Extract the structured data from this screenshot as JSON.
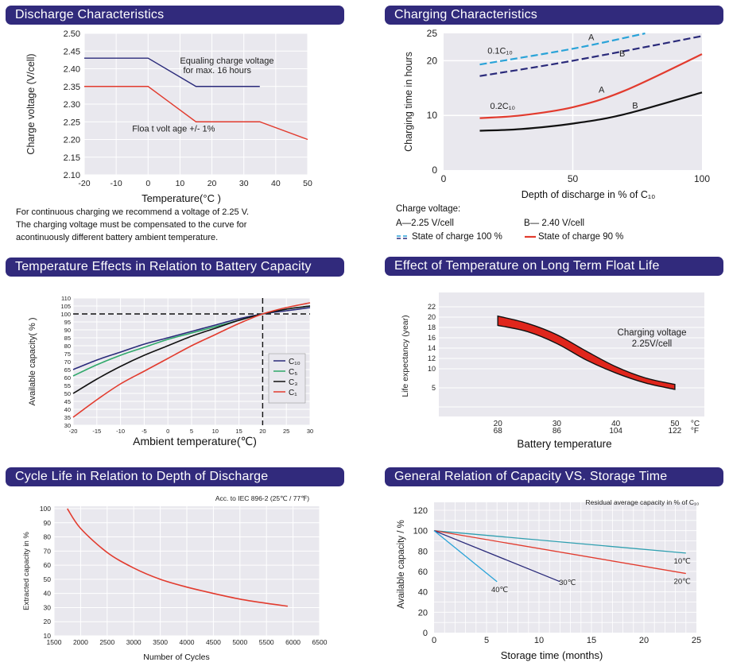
{
  "colors": {
    "title_bg": "#312a7c",
    "plot_bg": "#e9e8ee",
    "grid": "#ffffff",
    "navy": "#2a2a7a",
    "red": "#e23b2e",
    "blue": "#2aa3d8",
    "green": "#2fa86a",
    "teal": "#2f9fb0",
    "black": "#111111"
  },
  "panels": {
    "discharge": {
      "title": "Discharge Characteristics"
    },
    "charging": {
      "title": "Charging Characteristics"
    },
    "temperature": {
      "title": "Temperature Effects in Relation to Battery Capacity"
    },
    "floatlife": {
      "title": "Effect of Temperature on Long Term Float Life"
    },
    "cycle": {
      "title": "Cycle Life in Relation to Depth of Discharge"
    },
    "storage": {
      "title": "General Relation  of Capacity  VS. Storage Time"
    }
  },
  "discharge_note": {
    "line1": "For continuous charging  we recommend a  voltage of 2.25 V.",
    "line2": "The charging voltage  must be compensated  to the curve for",
    "line3": "acontinuously different battery ambient temperature."
  },
  "charging_legend": {
    "heading": "Charge voltage:",
    "a": "A—2.25 V/cell",
    "b": "B— 2.40 V/cell",
    "soc100": "State of charge 100 %",
    "soc90": "State of charge 90 %"
  },
  "chart_data": [
    {
      "id": "discharge",
      "type": "line",
      "title": "Discharge Characteristics",
      "xlabel": "Temperature(°C )",
      "ylabel": "Charge voltage (V/cell)",
      "xlim": [
        -20,
        50
      ],
      "ylim": [
        2.1,
        2.5
      ],
      "xticks": [
        -20,
        -10,
        0,
        10,
        20,
        30,
        40,
        50
      ],
      "yticks": [
        2.1,
        2.15,
        2.2,
        2.25,
        2.3,
        2.35,
        2.4,
        2.45,
        2.5
      ],
      "xtick_labels": [
        "-20",
        "-10",
        "0",
        "10",
        "20",
        "30",
        "40",
        "50"
      ],
      "ytick_labels": [
        "2.10",
        "2.15",
        "2.20",
        "2.25",
        "2.30",
        "2.35",
        "2.40",
        "2.45",
        "2.50"
      ],
      "series": [
        {
          "name": "Equaling charge voltage",
          "color": "navy",
          "x": [
            -20,
            0,
            15,
            35
          ],
          "y": [
            2.43,
            2.43,
            2.35,
            2.35
          ]
        },
        {
          "name": "Float voltage",
          "color": "red",
          "x": [
            -20,
            0,
            15,
            35,
            50
          ],
          "y": [
            2.35,
            2.35,
            2.25,
            2.25,
            2.2
          ]
        }
      ],
      "annotations": [
        {
          "text": "Equaling charge voltage",
          "x": 10,
          "y": 2.415
        },
        {
          "text": "for max. 16 hours",
          "x": 11,
          "y": 2.388
        },
        {
          "text": "Floa t volt age +/- 1%",
          "x": -5,
          "y": 2.223
        }
      ]
    },
    {
      "id": "charging",
      "type": "line",
      "title": "Charging Characteristics",
      "xlabel": "Depth of discharge in % of C₁₀",
      "ylabel": "Charging time in hours",
      "xlim": [
        0,
        100
      ],
      "ylim": [
        0,
        25
      ],
      "xticks": [
        0,
        50,
        100
      ],
      "yticks": [
        0,
        10,
        20,
        25
      ],
      "xtick_labels": [
        "0",
        "50",
        "100"
      ],
      "ytick_labels": [
        "0",
        "10",
        "20",
        "25"
      ],
      "series": [
        {
          "name": "0.1C10 A (100%)",
          "color": "blue",
          "dash": true,
          "x": [
            14,
            50,
            78
          ],
          "y": [
            19.3,
            22.2,
            25
          ]
        },
        {
          "name": "0.1C10 B (100%)",
          "color": "navy",
          "dash": true,
          "x": [
            14,
            50,
            100
          ],
          "y": [
            17.2,
            20.0,
            24.5
          ]
        },
        {
          "name": "0.2C10 A (90%)",
          "color": "red",
          "x": [
            14,
            30,
            50,
            70,
            100
          ],
          "y": [
            9.5,
            10.0,
            11.5,
            14.5,
            21.2
          ]
        },
        {
          "name": "0.2C10 B (90%)",
          "color": "black",
          "x": [
            14,
            30,
            50,
            70,
            100
          ],
          "y": [
            7.2,
            7.5,
            8.5,
            10.2,
            14.2
          ]
        }
      ],
      "annotations": [
        {
          "text": "A",
          "x": 56,
          "y": 23.8
        },
        {
          "text": "B",
          "x": 68,
          "y": 20.8
        },
        {
          "text": "A",
          "x": 60,
          "y": 14.2
        },
        {
          "text": "B",
          "x": 73,
          "y": 11.3
        },
        {
          "text": "0.1C₁₀",
          "x": 17,
          "y": 21.3
        },
        {
          "text": "0.2C₁₀",
          "x": 18,
          "y": 11.2
        }
      ]
    },
    {
      "id": "temperature",
      "type": "line",
      "title": "Temperature Effects in Relation to Battery Capacity",
      "xlabel": "Ambient temperature(℃)",
      "ylabel": "Available capacity( % )",
      "xlim": [
        -20,
        30
      ],
      "ylim": [
        30,
        110
      ],
      "xticks": [
        -20,
        -15,
        -10,
        -5,
        0,
        5,
        10,
        15,
        20,
        25,
        30
      ],
      "yticks": [
        30,
        35,
        40,
        45,
        50,
        55,
        60,
        65,
        70,
        75,
        80,
        85,
        90,
        95,
        100,
        105,
        110
      ],
      "xtick_labels": [
        "-20",
        "-15",
        "-10",
        "-5",
        "0",
        "5",
        "10",
        "15",
        "20",
        "25",
        "30"
      ],
      "ytick_labels": [
        "30",
        "35",
        "40",
        "45",
        "50",
        "55",
        "60",
        "65",
        "70",
        "75",
        "80",
        "85",
        "90",
        "95",
        "100",
        "105",
        "110"
      ],
      "reference": {
        "x": 20,
        "y": 100
      },
      "series": [
        {
          "name": "C₁₀",
          "color": "navy",
          "x": [
            -20,
            -15,
            -10,
            -5,
            0,
            5,
            10,
            15,
            20,
            25,
            30
          ],
          "y": [
            65,
            71,
            76,
            81,
            85,
            89,
            93,
            97,
            100,
            102,
            104
          ]
        },
        {
          "name": "C₅",
          "color": "green",
          "x": [
            -20,
            -15,
            -10,
            -5,
            0,
            5,
            10,
            15,
            20,
            25,
            30
          ],
          "y": [
            61,
            68,
            74,
            79,
            84,
            88,
            92,
            96,
            100,
            103,
            105
          ]
        },
        {
          "name": "C₃",
          "color": "black",
          "x": [
            -20,
            -15,
            -10,
            -5,
            0,
            5,
            10,
            15,
            20,
            25,
            30
          ],
          "y": [
            50,
            59,
            67,
            74,
            80,
            86,
            91,
            96,
            100,
            103,
            105
          ]
        },
        {
          "name": "C₁",
          "color": "red",
          "x": [
            -20,
            -15,
            -10,
            -5,
            0,
            5,
            10,
            15,
            20,
            25,
            30
          ],
          "y": [
            35,
            46,
            56,
            64,
            72,
            80,
            87,
            94,
            100,
            104,
            107
          ]
        }
      ]
    },
    {
      "id": "floatlife",
      "type": "area",
      "title": "Effect of Temperature on Long Term Float Life",
      "xlabel": "Battery temperature",
      "ylabel": "Life expectancy (year)",
      "xlim": [
        10,
        55
      ],
      "yticks": [
        5,
        10,
        12,
        14,
        16,
        18,
        20,
        22
      ],
      "ytick_labels": [
        "5",
        "10",
        "12",
        "14",
        "16",
        "18",
        "20",
        "22"
      ],
      "xticks": [
        20,
        30,
        40,
        50
      ],
      "xtick_labels_c": [
        "20",
        "30",
        "40",
        "50"
      ],
      "xtick_labels_f": [
        "68",
        "86",
        "104",
        "122"
      ],
      "unit_c": "°C",
      "unit_f": "°F",
      "band_x": [
        20,
        25,
        30,
        35,
        40,
        45,
        50
      ],
      "band_upper": [
        20.2,
        18.8,
        16.6,
        13.4,
        10.4,
        7.6,
        5.9
      ],
      "band_lower": [
        18.4,
        17.2,
        14.9,
        11.7,
        8.9,
        6.3,
        4.6
      ],
      "annotations": [
        {
          "text": "Charging voltage"
        },
        {
          "text": "2.25V/cell"
        }
      ]
    },
    {
      "id": "cycle",
      "type": "line",
      "title": "Cycle Life in Relation to Depth of Discharge",
      "subtitle": "Acc. to IEC 896-2 (25℃ / 77℉)",
      "xlabel": "Number of Cycles",
      "ylabel": "Extracted capacity in %",
      "xlim": [
        1500,
        6500
      ],
      "ylim": [
        10,
        100
      ],
      "xticks": [
        1500,
        2000,
        2500,
        3000,
        3500,
        4000,
        4500,
        5000,
        5500,
        6000,
        6500
      ],
      "yticks": [
        10,
        20,
        30,
        40,
        50,
        60,
        70,
        80,
        90,
        100
      ],
      "xtick_labels": [
        "1500",
        "2000",
        "2500",
        "3000",
        "3500",
        "4000",
        "4500",
        "5000",
        "5500",
        "6000",
        "6500"
      ],
      "ytick_labels": [
        "10",
        "20",
        "30",
        "40",
        "50",
        "60",
        "70",
        "80",
        "90",
        "100"
      ],
      "series": [
        {
          "name": "Extracted capacity",
          "color": "red",
          "x": [
            1750,
            2000,
            2500,
            3000,
            3500,
            4000,
            4500,
            5000,
            5500,
            5900
          ],
          "y": [
            100,
            86,
            69,
            58,
            50,
            44.5,
            40,
            36,
            33,
            31
          ]
        }
      ]
    },
    {
      "id": "storage",
      "type": "line",
      "title": "General Relation  of Capacity  VS. Storage Time",
      "subtitle": "Residual average capacity in % of C₁₀",
      "xlabel": "Storage time (months)",
      "ylabel": "Available capacity / %",
      "xlim": [
        0,
        25
      ],
      "ylim": [
        0,
        120
      ],
      "xticks": [
        0,
        5,
        10,
        15,
        20,
        25
      ],
      "yticks": [
        0,
        20,
        40,
        60,
        80,
        100,
        120
      ],
      "xtick_labels": [
        "0",
        "5",
        "10",
        "15",
        "20",
        "25"
      ],
      "ytick_labels": [
        "0",
        "20",
        "40",
        "60",
        "80",
        "100",
        "120"
      ],
      "series": [
        {
          "name": "10℃",
          "color": "teal",
          "x": [
            0,
            24
          ],
          "y": [
            100,
            78
          ]
        },
        {
          "name": "20℃",
          "color": "red",
          "x": [
            0,
            24
          ],
          "y": [
            100,
            58
          ]
        },
        {
          "name": "30℃",
          "color": "navy",
          "x": [
            0,
            12
          ],
          "y": [
            100,
            50
          ]
        },
        {
          "name": "40℃",
          "color": "blue",
          "x": [
            0,
            6
          ],
          "y": [
            100,
            50
          ]
        }
      ]
    }
  ]
}
